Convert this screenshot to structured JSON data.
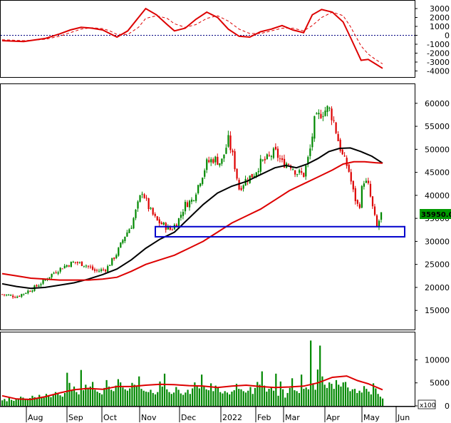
{
  "chart_data": [
    {
      "panel": "macd",
      "type": "line",
      "y_ticks": [
        "3000",
        "2000",
        "1000",
        "0",
        "-1000",
        "-2000",
        "-3000",
        "-4000"
      ],
      "ylim": [
        -4600,
        3800
      ],
      "zero_line": 0,
      "series": [
        {
          "role": "macd",
          "color": "#dd0000",
          "style": "solid",
          "points": [
            [
              0,
              -600
            ],
            [
              30,
              -700
            ],
            [
              60,
              -350
            ],
            [
              80,
              150
            ],
            [
              95,
              600
            ],
            [
              110,
              900
            ],
            [
              125,
              800
            ],
            [
              140,
              600
            ],
            [
              150,
              200
            ],
            [
              160,
              -200
            ],
            [
              175,
              500
            ],
            [
              190,
              2000
            ],
            [
              200,
              3000
            ],
            [
              215,
              2300
            ],
            [
              230,
              1200
            ],
            [
              240,
              500
            ],
            [
              255,
              800
            ],
            [
              270,
              1800
            ],
            [
              285,
              2600
            ],
            [
              300,
              2000
            ],
            [
              315,
              700
            ],
            [
              330,
              -100
            ],
            [
              345,
              -200
            ],
            [
              360,
              400
            ],
            [
              375,
              700
            ],
            [
              390,
              1100
            ],
            [
              405,
              600
            ],
            [
              420,
              300
            ],
            [
              432,
              2300
            ],
            [
              445,
              2900
            ],
            [
              460,
              2600
            ],
            [
              475,
              1500
            ],
            [
              485,
              -200
            ],
            [
              500,
              -2800
            ],
            [
              510,
              -2700
            ],
            [
              520,
              -3200
            ],
            [
              530,
              -3700
            ]
          ]
        },
        {
          "role": "signal",
          "color": "#dd0000",
          "style": "dashed",
          "points": [
            [
              0,
              -500
            ],
            [
              30,
              -600
            ],
            [
              60,
              -450
            ],
            [
              80,
              -100
            ],
            [
              95,
              300
            ],
            [
              110,
              700
            ],
            [
              125,
              850
            ],
            [
              140,
              750
            ],
            [
              150,
              500
            ],
            [
              160,
              100
            ],
            [
              175,
              100
            ],
            [
              190,
              900
            ],
            [
              200,
              1900
            ],
            [
              215,
              2200
            ],
            [
              230,
              1900
            ],
            [
              240,
              1300
            ],
            [
              255,
              900
            ],
            [
              270,
              1200
            ],
            [
              285,
              1900
            ],
            [
              300,
              2200
            ],
            [
              315,
              1600
            ],
            [
              330,
              700
            ],
            [
              345,
              200
            ],
            [
              360,
              200
            ],
            [
              375,
              500
            ],
            [
              390,
              800
            ],
            [
              405,
              800
            ],
            [
              420,
              500
            ],
            [
              432,
              1100
            ],
            [
              445,
              2000
            ],
            [
              460,
              2600
            ],
            [
              475,
              2200
            ],
            [
              485,
              1000
            ],
            [
              500,
              -1200
            ],
            [
              510,
              -2100
            ],
            [
              520,
              -2700
            ],
            [
              530,
              -3200
            ]
          ]
        }
      ]
    },
    {
      "panel": "price",
      "type": "candlestick",
      "y_ticks": [
        "60000",
        "55000",
        "50000",
        "45000",
        "40000",
        "35000",
        "30000",
        "25000",
        "20000",
        "15000"
      ],
      "ylim": [
        11000,
        64000
      ],
      "last_price_label": "35950.00",
      "last_price": 35950,
      "up_color": "#008800",
      "down_color": "#dd0000",
      "close_series": [
        [
          0,
          18500
        ],
        [
          20,
          18000
        ],
        [
          40,
          19500
        ],
        [
          55,
          21000
        ],
        [
          70,
          23000
        ],
        [
          85,
          24500
        ],
        [
          100,
          25500
        ],
        [
          115,
          25000
        ],
        [
          130,
          23500
        ],
        [
          145,
          24000
        ],
        [
          160,
          27500
        ],
        [
          170,
          31000
        ],
        [
          180,
          33500
        ],
        [
          195,
          41000
        ],
        [
          205,
          37000
        ],
        [
          215,
          34500
        ],
        [
          225,
          33500
        ],
        [
          235,
          32500
        ],
        [
          245,
          34500
        ],
        [
          255,
          38000
        ],
        [
          265,
          39000
        ],
        [
          275,
          43000
        ],
        [
          285,
          47000
        ],
        [
          295,
          48000
        ],
        [
          305,
          47000
        ],
        [
          315,
          52000
        ],
        [
          322,
          48000
        ],
        [
          330,
          41500
        ],
        [
          340,
          43500
        ],
        [
          350,
          44500
        ],
        [
          360,
          47000
        ],
        [
          370,
          48000
        ],
        [
          380,
          49500
        ],
        [
          390,
          47000
        ],
        [
          400,
          47000
        ],
        [
          410,
          45000
        ],
        [
          420,
          44500
        ],
        [
          428,
          49000
        ],
        [
          435,
          56000
        ],
        [
          445,
          58000
        ],
        [
          455,
          59000
        ],
        [
          462,
          56000
        ],
        [
          468,
          52000
        ],
        [
          475,
          48000
        ],
        [
          482,
          46000
        ],
        [
          490,
          40000
        ],
        [
          497,
          37000
        ],
        [
          503,
          43500
        ],
        [
          510,
          42000
        ],
        [
          517,
          36500
        ],
        [
          522,
          33000
        ],
        [
          528,
          35950
        ]
      ],
      "ma_series": [
        {
          "role": "ma-black",
          "color": "#000000",
          "points": [
            [
              0,
              20800
            ],
            [
              20,
              20200
            ],
            [
              40,
              19800
            ],
            [
              60,
              20000
            ],
            [
              80,
              20500
            ],
            [
              100,
              21000
            ],
            [
              120,
              21800
            ],
            [
              140,
              22800
            ],
            [
              160,
              24000
            ],
            [
              180,
              26000
            ],
            [
              200,
              28500
            ],
            [
              220,
              30500
            ],
            [
              240,
              32000
            ],
            [
              260,
              35000
            ],
            [
              280,
              38000
            ],
            [
              300,
              40500
            ],
            [
              320,
              42000
            ],
            [
              340,
              43000
            ],
            [
              360,
              44500
            ],
            [
              380,
              46000
            ],
            [
              395,
              46500
            ],
            [
              410,
              46000
            ],
            [
              425,
              46800
            ],
            [
              440,
              48000
            ],
            [
              455,
              49500
            ],
            [
              470,
              50200
            ],
            [
              485,
              50300
            ],
            [
              500,
              49500
            ],
            [
              515,
              48500
            ],
            [
              530,
              47000
            ]
          ]
        },
        {
          "role": "ma-red",
          "color": "#dd0000",
          "points": [
            [
              0,
              23000
            ],
            [
              20,
              22500
            ],
            [
              40,
              22000
            ],
            [
              60,
              21800
            ],
            [
              80,
              21600
            ],
            [
              100,
              21600
            ],
            [
              120,
              21600
            ],
            [
              140,
              21800
            ],
            [
              160,
              22200
            ],
            [
              180,
              23500
            ],
            [
              200,
              25000
            ],
            [
              220,
              26000
            ],
            [
              240,
              27000
            ],
            [
              260,
              28500
            ],
            [
              280,
              30000
            ],
            [
              300,
              32000
            ],
            [
              320,
              34000
            ],
            [
              340,
              35500
            ],
            [
              360,
              37000
            ],
            [
              380,
              39000
            ],
            [
              400,
              41000
            ],
            [
              420,
              42500
            ],
            [
              440,
              44000
            ],
            [
              460,
              45500
            ],
            [
              475,
              46800
            ],
            [
              490,
              47300
            ],
            [
              505,
              47300
            ],
            [
              520,
              47100
            ],
            [
              530,
              47000
            ]
          ]
        }
      ],
      "support_zone": {
        "from_x": 218,
        "to_x": 568,
        "low": 31000,
        "high": 33200,
        "color": "#0000cc"
      }
    },
    {
      "panel": "volume",
      "type": "bar",
      "y_ticks": [
        "10000",
        "5000",
        "0"
      ],
      "ylim": [
        0,
        15500
      ],
      "unit_label": "x100",
      "bar_color": "#008800",
      "ma_color": "#dd0000",
      "values": [
        1200,
        1500,
        1000,
        1800,
        1300,
        1100,
        1600,
        1400,
        2000,
        1800,
        1500,
        1300,
        1700,
        2200,
        1900,
        1600,
        2400,
        2000,
        1800,
        2600,
        2200,
        1900,
        2500,
        3000,
        2700,
        2300,
        2000,
        2800,
        7200,
        5000,
        3500,
        4200,
        3000,
        2500,
        7800,
        3400,
        4600,
        3800,
        4200,
        5200,
        3500,
        3100,
        2800,
        2500,
        3900,
        5600,
        4200,
        3500,
        3200,
        4400,
        5800,
        5100,
        4000,
        3600,
        3300,
        3800,
        5000,
        4600,
        4200,
        6400,
        3700,
        3300,
        3100,
        3000,
        3500,
        2800,
        2500,
        3000,
        5300,
        4200,
        7000,
        3600,
        3000,
        2600,
        2900,
        4100,
        3500,
        2700,
        2400,
        2900,
        3500,
        2600,
        3800,
        5100,
        4300,
        3800,
        6800,
        4400,
        3600,
        3400,
        4900,
        3200,
        4400,
        3900,
        3000,
        2700,
        3200,
        2900,
        2500,
        3100,
        3400,
        4800,
        3700,
        3600,
        3200,
        2900,
        3300,
        4100,
        2600,
        3900,
        5200,
        4600,
        7500,
        4400,
        3100,
        3700,
        4000,
        3300,
        7000,
        2200,
        5300,
        3600,
        1800,
        2800,
        3900,
        6000,
        3400,
        3200,
        2800,
        6800,
        3700,
        4000,
        3600,
        14200,
        4900,
        3500,
        7900,
        13100,
        6400,
        4600,
        3900,
        5100,
        4800,
        3700,
        5600,
        4600,
        4200,
        5100,
        5200,
        4000,
        3200,
        3600,
        3700,
        2800,
        3300,
        2900,
        4300,
        3700,
        3100,
        2500,
        4900,
        3800,
        2600,
        2000,
        1600
      ],
      "ma_points": [
        [
          0,
          2200
        ],
        [
          20,
          1500
        ],
        [
          40,
          1400
        ],
        [
          60,
          2000
        ],
        [
          80,
          2800
        ],
        [
          100,
          3500
        ],
        [
          120,
          3800
        ],
        [
          140,
          3600
        ],
        [
          160,
          4200
        ],
        [
          180,
          4200
        ],
        [
          200,
          4500
        ],
        [
          220,
          4700
        ],
        [
          240,
          4600
        ],
        [
          260,
          4400
        ],
        [
          280,
          4300
        ],
        [
          300,
          4000
        ],
        [
          320,
          4300
        ],
        [
          340,
          4500
        ],
        [
          360,
          4200
        ],
        [
          380,
          4000
        ],
        [
          400,
          4100
        ],
        [
          420,
          4300
        ],
        [
          440,
          5000
        ],
        [
          460,
          6200
        ],
        [
          480,
          6500
        ],
        [
          495,
          5500
        ],
        [
          510,
          4800
        ],
        [
          530,
          3500
        ]
      ]
    },
    {
      "panel": "x-axis",
      "type": "axis",
      "month_labels": [
        "Aug",
        "Sep",
        "Oct",
        "Nov",
        "Dec",
        "2022",
        "Feb",
        "Mar",
        "Apr",
        "May",
        "Jun"
      ]
    }
  ]
}
